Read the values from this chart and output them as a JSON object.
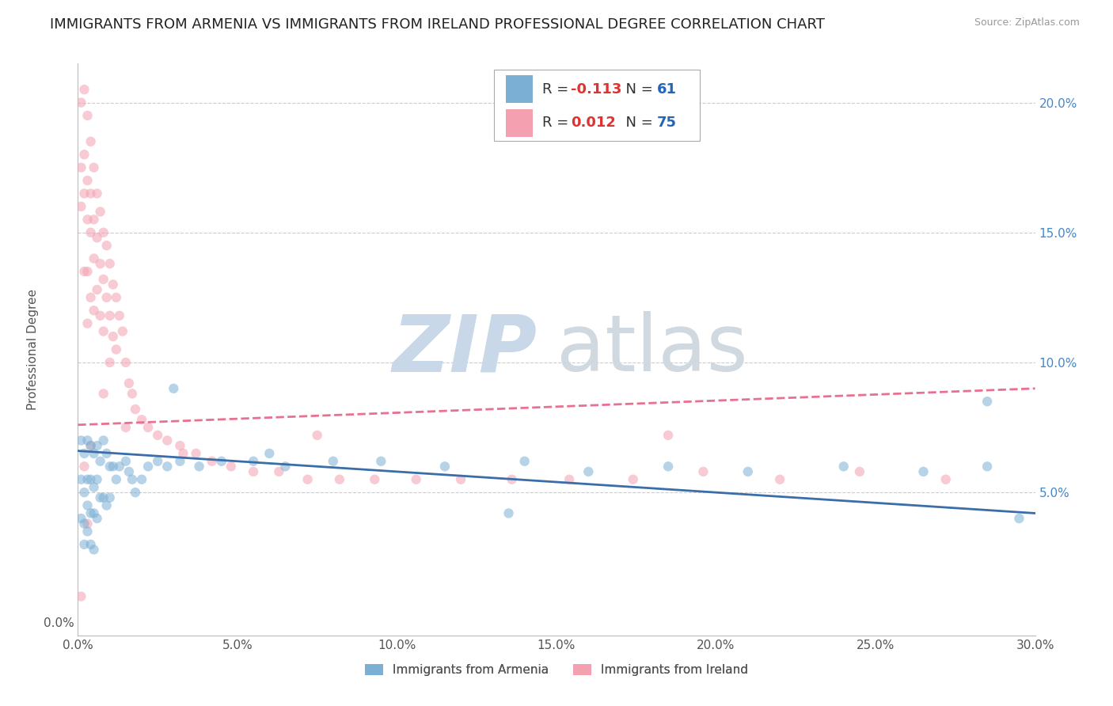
{
  "title": "IMMIGRANTS FROM ARMENIA VS IMMIGRANTS FROM IRELAND PROFESSIONAL DEGREE CORRELATION CHART",
  "source": "Source: ZipAtlas.com",
  "ylabel": "Professional Degree",
  "series1_name": "Immigrants from Armenia",
  "series2_name": "Immigrants from Ireland",
  "series1_color": "#7BAFD4",
  "series2_color": "#F4A0B0",
  "series1_R": -0.113,
  "series1_N": 61,
  "series2_R": 0.012,
  "series2_N": 75,
  "xlim": [
    0.0,
    0.3
  ],
  "ylim": [
    -0.005,
    0.215
  ],
  "xticks": [
    0.0,
    0.05,
    0.1,
    0.15,
    0.2,
    0.25,
    0.3
  ],
  "yticks_left": [
    0.0
  ],
  "ytick_labels_left": [
    "0.0%"
  ],
  "yticks_right": [
    0.05,
    0.1,
    0.15,
    0.2
  ],
  "ytick_labels_right": [
    "5.0%",
    "10.0%",
    "15.0%",
    "20.0%"
  ],
  "grid_yticks": [
    0.05,
    0.1,
    0.15,
    0.2
  ],
  "xtick_labels": [
    "0.0%",
    "5.0%",
    "10.0%",
    "15.0%",
    "20.0%",
    "25.0%",
    "30.0%"
  ],
  "watermark_zip": "ZIP",
  "watermark_atlas": "atlas",
  "armenia_x": [
    0.001,
    0.001,
    0.001,
    0.002,
    0.002,
    0.002,
    0.002,
    0.003,
    0.003,
    0.003,
    0.003,
    0.004,
    0.004,
    0.004,
    0.004,
    0.005,
    0.005,
    0.005,
    0.005,
    0.006,
    0.006,
    0.006,
    0.007,
    0.007,
    0.008,
    0.008,
    0.009,
    0.009,
    0.01,
    0.01,
    0.011,
    0.012,
    0.013,
    0.015,
    0.016,
    0.017,
    0.018,
    0.02,
    0.022,
    0.025,
    0.028,
    0.032,
    0.038,
    0.045,
    0.055,
    0.065,
    0.08,
    0.095,
    0.115,
    0.14,
    0.16,
    0.185,
    0.21,
    0.24,
    0.265,
    0.285,
    0.295,
    0.285,
    0.135,
    0.06,
    0.03
  ],
  "armenia_y": [
    0.07,
    0.055,
    0.04,
    0.065,
    0.05,
    0.038,
    0.03,
    0.07,
    0.055,
    0.045,
    0.035,
    0.068,
    0.055,
    0.042,
    0.03,
    0.065,
    0.052,
    0.042,
    0.028,
    0.068,
    0.055,
    0.04,
    0.062,
    0.048,
    0.07,
    0.048,
    0.065,
    0.045,
    0.06,
    0.048,
    0.06,
    0.055,
    0.06,
    0.062,
    0.058,
    0.055,
    0.05,
    0.055,
    0.06,
    0.062,
    0.06,
    0.062,
    0.06,
    0.062,
    0.062,
    0.06,
    0.062,
    0.062,
    0.06,
    0.062,
    0.058,
    0.06,
    0.058,
    0.06,
    0.058,
    0.06,
    0.04,
    0.085,
    0.042,
    0.065,
    0.09
  ],
  "ireland_x": [
    0.001,
    0.001,
    0.001,
    0.002,
    0.002,
    0.002,
    0.002,
    0.003,
    0.003,
    0.003,
    0.003,
    0.003,
    0.004,
    0.004,
    0.004,
    0.004,
    0.005,
    0.005,
    0.005,
    0.005,
    0.006,
    0.006,
    0.006,
    0.007,
    0.007,
    0.007,
    0.008,
    0.008,
    0.008,
    0.009,
    0.009,
    0.01,
    0.01,
    0.01,
    0.011,
    0.011,
    0.012,
    0.012,
    0.013,
    0.014,
    0.015,
    0.016,
    0.017,
    0.018,
    0.02,
    0.022,
    0.025,
    0.028,
    0.032,
    0.037,
    0.042,
    0.048,
    0.055,
    0.063,
    0.072,
    0.082,
    0.093,
    0.106,
    0.12,
    0.136,
    0.154,
    0.174,
    0.196,
    0.22,
    0.245,
    0.272,
    0.185,
    0.075,
    0.033,
    0.015,
    0.008,
    0.004,
    0.002,
    0.003,
    0.001
  ],
  "ireland_y": [
    0.2,
    0.175,
    0.16,
    0.205,
    0.18,
    0.165,
    0.135,
    0.195,
    0.17,
    0.155,
    0.135,
    0.115,
    0.185,
    0.165,
    0.15,
    0.125,
    0.175,
    0.155,
    0.14,
    0.12,
    0.165,
    0.148,
    0.128,
    0.158,
    0.138,
    0.118,
    0.15,
    0.132,
    0.112,
    0.145,
    0.125,
    0.138,
    0.118,
    0.1,
    0.13,
    0.11,
    0.125,
    0.105,
    0.118,
    0.112,
    0.1,
    0.092,
    0.088,
    0.082,
    0.078,
    0.075,
    0.072,
    0.07,
    0.068,
    0.065,
    0.062,
    0.06,
    0.058,
    0.058,
    0.055,
    0.055,
    0.055,
    0.055,
    0.055,
    0.055,
    0.055,
    0.055,
    0.058,
    0.055,
    0.058,
    0.055,
    0.072,
    0.072,
    0.065,
    0.075,
    0.088,
    0.068,
    0.06,
    0.038,
    0.01
  ],
  "armenia_line_x": [
    0.0,
    0.3
  ],
  "armenia_line_y": [
    0.066,
    0.042
  ],
  "ireland_line_x": [
    0.0,
    0.3
  ],
  "ireland_line_y": [
    0.076,
    0.09
  ],
  "background_color": "#FFFFFF",
  "grid_color": "#CCCCCC",
  "title_fontsize": 13,
  "axis_label_fontsize": 11,
  "tick_fontsize": 11,
  "legend_fontsize": 13,
  "watermark_color_zip": "#C8D8E8",
  "watermark_color_atlas": "#D0D8E0",
  "marker_size": 80,
  "marker_alpha": 0.55,
  "line_width": 2.0
}
